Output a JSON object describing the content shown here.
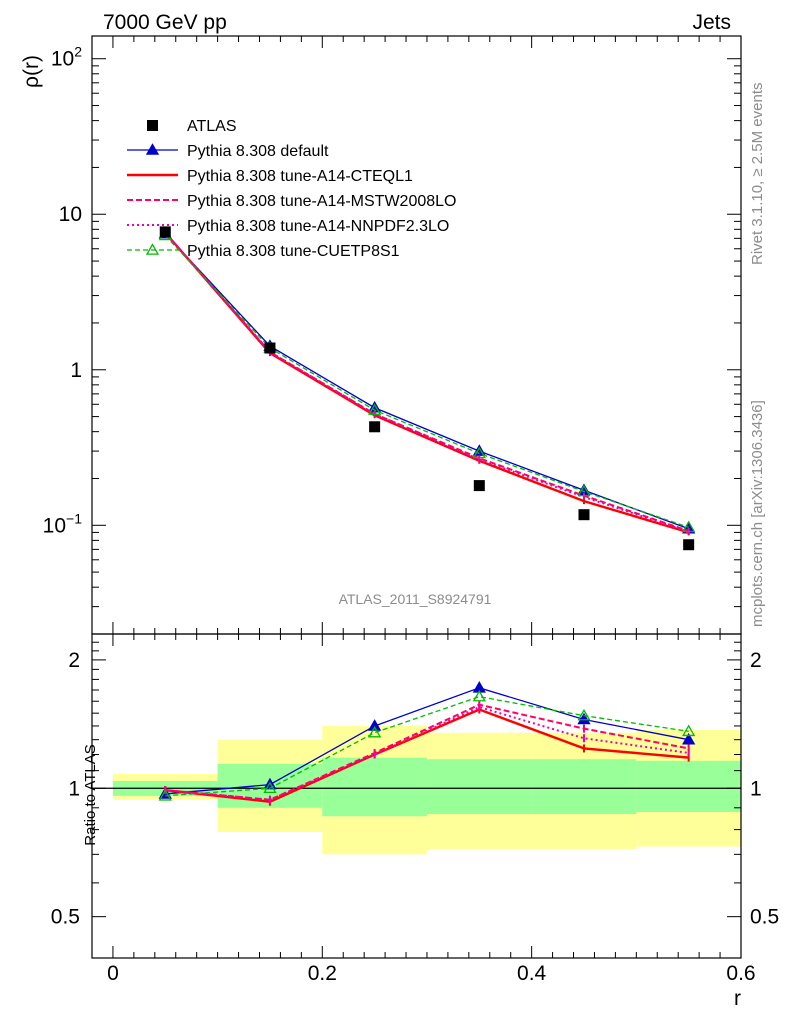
{
  "header": {
    "left": "7000 GeV pp",
    "right": "Jets"
  },
  "side_text": {
    "rivet": "Rivet 3.1.10, ≥ 2.5M events",
    "mcplots": "mcplots.cern.ch [arXiv:1306.3436]"
  },
  "watermark": "ATLAS_2011_S8924791",
  "colors": {
    "data": "#000000",
    "default": "#0000cc",
    "cteql1": "#ff0000",
    "mstw": "#ff0066",
    "nnpdf": "#ee00aa",
    "cuetp8s1": "#00bb00",
    "band_inner": "#99ff99",
    "band_outer": "#ffff99"
  },
  "chart_data": [
    {
      "type": "line",
      "ylabel": "ρ(r)",
      "yscale": "log",
      "ylim": [
        0.02,
        140
      ],
      "xlim": [
        -0.02,
        0.6
      ],
      "yticks": [
        {
          "value": 100,
          "base": "10",
          "exp": "2"
        },
        {
          "value": 10,
          "text": "10"
        },
        {
          "value": 1,
          "text": "1"
        },
        {
          "value": 0.1,
          "base": "10",
          "exp": "−1"
        }
      ],
      "legend": [
        "ATLAS",
        "Pythia 8.308 default",
        "Pythia 8.308 tune-A14-CTEQL1",
        "Pythia 8.308 tune-A14-MSTW2008LO",
        "Pythia 8.308 tune-A14-NNPDF2.3LO",
        "Pythia 8.308 tune-CUETP8S1"
      ],
      "x": [
        0.05,
        0.15,
        0.25,
        0.35,
        0.45,
        0.55
      ],
      "data": [
        7.7,
        1.38,
        0.43,
        0.18,
        0.117,
        0.075
      ],
      "series": [
        {
          "name": "Pythia 8.308 default",
          "values": [
            7.5,
            1.42,
            0.57,
            0.3,
            0.168,
            0.095
          ]
        },
        {
          "name": "Pythia 8.308 tune-A14-CTEQL1",
          "values": [
            7.6,
            1.28,
            0.51,
            0.26,
            0.143,
            0.09
          ]
        },
        {
          "name": "Pythia 8.308 tune-A14-MSTW2008LO",
          "values": [
            7.6,
            1.3,
            0.52,
            0.27,
            0.155,
            0.092
          ]
        },
        {
          "name": "Pythia 8.308 tune-A14-NNPDF2.3LO",
          "values": [
            7.6,
            1.3,
            0.52,
            0.265,
            0.152,
            0.091
          ]
        },
        {
          "name": "Pythia 8.308 tune-CUETP8S1",
          "values": [
            7.3,
            1.38,
            0.55,
            0.29,
            0.165,
            0.097
          ]
        }
      ]
    },
    {
      "type": "line",
      "ylabel": "Ratio to ATLAS",
      "xlabel": "r",
      "yscale": "log",
      "ylim": [
        0.4,
        2.3
      ],
      "xlim": [
        -0.02,
        0.6
      ],
      "yticks": [
        {
          "value": 2,
          "text": "2"
        },
        {
          "value": 1,
          "text": "1"
        },
        {
          "value": 0.5,
          "text": "0.5"
        }
      ],
      "xticks": [
        {
          "value": 0,
          "text": "0"
        },
        {
          "value": 0.2,
          "text": "0.2"
        },
        {
          "value": 0.4,
          "text": "0.4"
        },
        {
          "value": 0.6,
          "text": "0.6"
        }
      ],
      "bands": [
        {
          "x0": 0.0,
          "x1": 0.1,
          "inner": [
            0.96,
            1.04
          ],
          "outer": [
            0.94,
            1.08
          ]
        },
        {
          "x0": 0.1,
          "x1": 0.2,
          "inner": [
            0.9,
            1.14
          ],
          "outer": [
            0.79,
            1.3
          ]
        },
        {
          "x0": 0.2,
          "x1": 0.3,
          "inner": [
            0.86,
            1.18
          ],
          "outer": [
            0.7,
            1.4
          ]
        },
        {
          "x0": 0.3,
          "x1": 0.4,
          "inner": [
            0.87,
            1.17
          ],
          "outer": [
            0.72,
            1.35
          ]
        },
        {
          "x0": 0.4,
          "x1": 0.5,
          "inner": [
            0.87,
            1.17
          ],
          "outer": [
            0.72,
            1.35
          ]
        },
        {
          "x0": 0.5,
          "x1": 0.6,
          "inner": [
            0.88,
            1.16
          ],
          "outer": [
            0.73,
            1.37
          ]
        }
      ],
      "x": [
        0.05,
        0.15,
        0.25,
        0.35,
        0.45,
        0.55
      ],
      "series": [
        {
          "name": "Pythia 8.308 default",
          "values": [
            0.97,
            1.02,
            1.4,
            1.72,
            1.45,
            1.3
          ]
        },
        {
          "name": "Pythia 8.308 tune-A14-CTEQL1",
          "values": [
            0.99,
            0.93,
            1.2,
            1.53,
            1.24,
            1.18
          ]
        },
        {
          "name": "Pythia 8.308 tune-A14-MSTW2008LO",
          "values": [
            0.99,
            0.94,
            1.21,
            1.57,
            1.38,
            1.24
          ]
        },
        {
          "name": "Pythia 8.308 tune-A14-NNPDF2.3LO",
          "values": [
            0.99,
            0.94,
            1.2,
            1.55,
            1.31,
            1.21
          ]
        },
        {
          "name": "Pythia 8.308 tune-CUETP8S1",
          "values": [
            0.96,
            1.0,
            1.35,
            1.64,
            1.48,
            1.36
          ]
        }
      ]
    }
  ]
}
